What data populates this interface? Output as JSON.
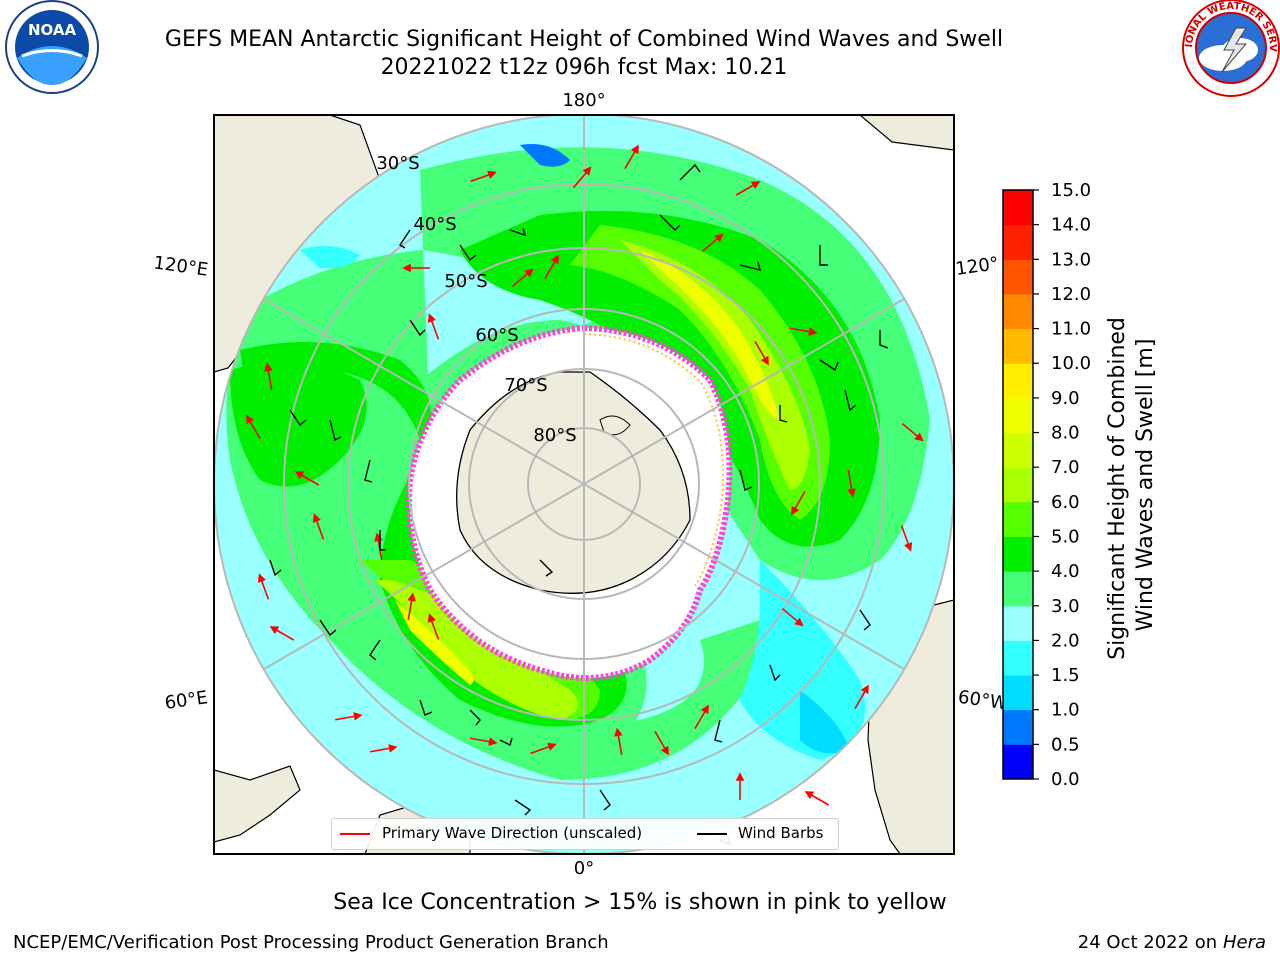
{
  "header": {
    "title_line1": "GEFS MEAN Antarctic Significant Height of Combined Wind Waves and Swell",
    "title_line2": "20221022 t12z 096h fcst   Max: 10.21"
  },
  "logos": {
    "left": {
      "icon": "noaa-logo-icon",
      "text": "NOAA"
    },
    "right": {
      "icon": "nws-logo-icon",
      "text": "NATIONAL WEATHER SERVICE"
    }
  },
  "map": {
    "projection": "south-polar-stereographic",
    "longitude_labels": {
      "top": "180°",
      "bottom": "0°",
      "left_upper": "120°E",
      "left_lower": "60°E",
      "right_upper": "120°",
      "right_lower": "60°W"
    },
    "latitude_labels": [
      "30°S",
      "40°S",
      "50°S",
      "60°S",
      "70°S",
      "80°S"
    ],
    "land_color": "#eeecdc",
    "ice_color": "#ff44dd"
  },
  "legend": {
    "wave_label": "Primary Wave Direction (unscaled)",
    "wave_color": "#ff0000",
    "wind_label": "Wind Barbs",
    "wind_color": "#000000"
  },
  "colorbar": {
    "title_line1": "Significant Height of Combined",
    "title_line2": "Wind Waves and Swell [m]",
    "ticks": [
      "0.0",
      "0.5",
      "1.0",
      "1.5",
      "2.0",
      "3.0",
      "4.0",
      "5.0",
      "6.0",
      "7.0",
      "8.0",
      "9.0",
      "10.0",
      "11.0",
      "12.0",
      "13.0",
      "14.0",
      "15.0"
    ],
    "colors": [
      "#0000ff",
      "#0077ff",
      "#00ddff",
      "#33ffff",
      "#99ffff",
      "#44ff77",
      "#00ee00",
      "#55ff00",
      "#aaff00",
      "#ccff00",
      "#eeff00",
      "#ffee00",
      "#ffbb00",
      "#ff8800",
      "#ff5500",
      "#ff2200",
      "#ff0000"
    ]
  },
  "subtitle": "Sea Ice Concentration > 15% is shown in pink to yellow",
  "footer": {
    "left": "NCEP/EMC/Verification Post Processing Product Generation Branch",
    "right_prefix": "24 Oct 2022 on ",
    "right_host": "Hera"
  }
}
